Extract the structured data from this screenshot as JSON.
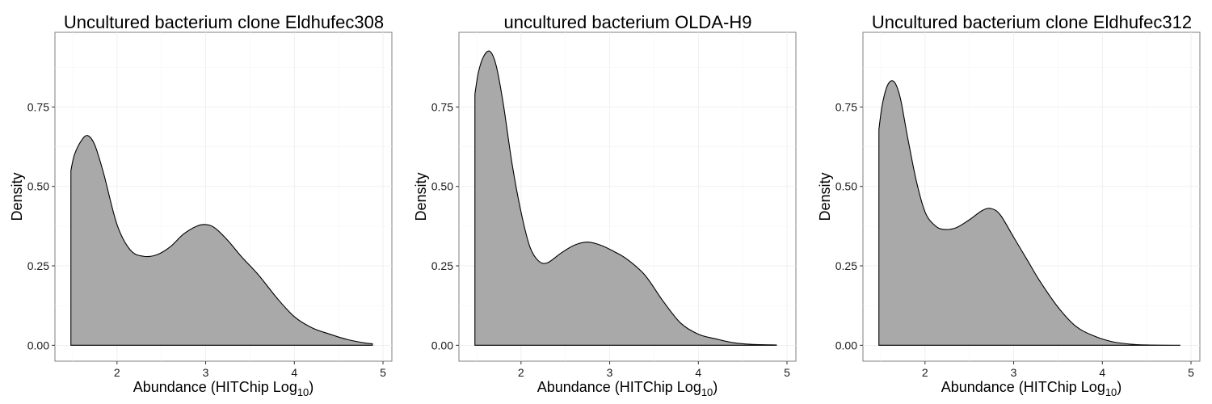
{
  "chart_data": [
    {
      "type": "area",
      "title": "Uncultured bacterium clone Eldhufec308",
      "xlabel": "Abundance (HITChip Log",
      "xlabel_sub": "10",
      "xlabel_close": ")",
      "ylabel": "Density",
      "xlim": [
        1.3,
        5.1
      ],
      "ylim": [
        -0.05,
        0.985
      ],
      "xticks": [
        2,
        3,
        4,
        5
      ],
      "xtick_labels": [
        "2",
        "3",
        "4",
        "5"
      ],
      "yticks": [
        0,
        0.25,
        0.5,
        0.75
      ],
      "ytick_labels": [
        "0.00",
        "0.25",
        "0.50",
        "0.75"
      ],
      "grid": true,
      "color": "#a9a9a9",
      "series": [
        {
          "x": [
            1.48,
            1.52,
            1.6,
            1.67,
            1.75,
            1.85,
            2.0,
            2.15,
            2.3,
            2.45,
            2.6,
            2.75,
            2.9,
            3.0,
            3.1,
            3.25,
            3.4,
            3.6,
            3.8,
            4.0,
            4.2,
            4.4,
            4.6,
            4.8,
            4.88
          ],
          "y": [
            0.55,
            0.6,
            0.645,
            0.66,
            0.63,
            0.54,
            0.38,
            0.3,
            0.28,
            0.285,
            0.31,
            0.35,
            0.375,
            0.38,
            0.37,
            0.33,
            0.28,
            0.22,
            0.15,
            0.09,
            0.055,
            0.035,
            0.018,
            0.007,
            0.005
          ]
        }
      ]
    },
    {
      "type": "area",
      "title": "uncultured bacterium OLDA-H9",
      "xlabel": "Abundance (HITChip Log",
      "xlabel_sub": "10",
      "xlabel_close": ")",
      "ylabel": "Density",
      "xlim": [
        1.3,
        5.1
      ],
      "ylim": [
        -0.05,
        0.985
      ],
      "xticks": [
        2,
        3,
        4,
        5
      ],
      "xtick_labels": [
        "2",
        "3",
        "4",
        "5"
      ],
      "yticks": [
        0,
        0.25,
        0.5,
        0.75
      ],
      "ytick_labels": [
        "0.00",
        "0.25",
        "0.50",
        "0.75"
      ],
      "grid": true,
      "color": "#a9a9a9",
      "series": [
        {
          "x": [
            1.48,
            1.52,
            1.58,
            1.65,
            1.72,
            1.8,
            1.9,
            2.0,
            2.1,
            2.2,
            2.3,
            2.45,
            2.6,
            2.75,
            2.9,
            3.05,
            3.2,
            3.4,
            3.6,
            3.8,
            4.0,
            4.2,
            4.4,
            4.6,
            4.88
          ],
          "y": [
            0.79,
            0.86,
            0.91,
            0.925,
            0.88,
            0.76,
            0.57,
            0.42,
            0.31,
            0.265,
            0.26,
            0.29,
            0.315,
            0.325,
            0.315,
            0.295,
            0.27,
            0.22,
            0.14,
            0.07,
            0.035,
            0.02,
            0.008,
            0.003,
            0.001
          ]
        }
      ]
    },
    {
      "type": "area",
      "title": "Uncultured bacterium clone Eldhufec312",
      "xlabel": "Abundance (HITChip Log",
      "xlabel_sub": "10",
      "xlabel_close": ")",
      "ylabel": "Density",
      "xlim": [
        1.3,
        5.1
      ],
      "ylim": [
        -0.05,
        0.985
      ],
      "xticks": [
        2,
        3,
        4,
        5
      ],
      "xtick_labels": [
        "2",
        "3",
        "4",
        "5"
      ],
      "yticks": [
        0,
        0.25,
        0.5,
        0.75
      ],
      "ytick_labels": [
        "0.00",
        "0.25",
        "0.50",
        "0.75"
      ],
      "grid": true,
      "color": "#a9a9a9",
      "series": [
        {
          "x": [
            1.48,
            1.52,
            1.58,
            1.65,
            1.72,
            1.8,
            1.9,
            2.0,
            2.1,
            2.2,
            2.35,
            2.5,
            2.65,
            2.75,
            2.85,
            3.0,
            3.15,
            3.3,
            3.5,
            3.7,
            3.9,
            4.1,
            4.3,
            4.5,
            4.88
          ],
          "y": [
            0.68,
            0.76,
            0.82,
            0.83,
            0.78,
            0.66,
            0.52,
            0.42,
            0.38,
            0.365,
            0.37,
            0.395,
            0.425,
            0.43,
            0.41,
            0.34,
            0.27,
            0.2,
            0.12,
            0.06,
            0.03,
            0.012,
            0.004,
            0.001,
            0.0
          ]
        }
      ]
    }
  ]
}
